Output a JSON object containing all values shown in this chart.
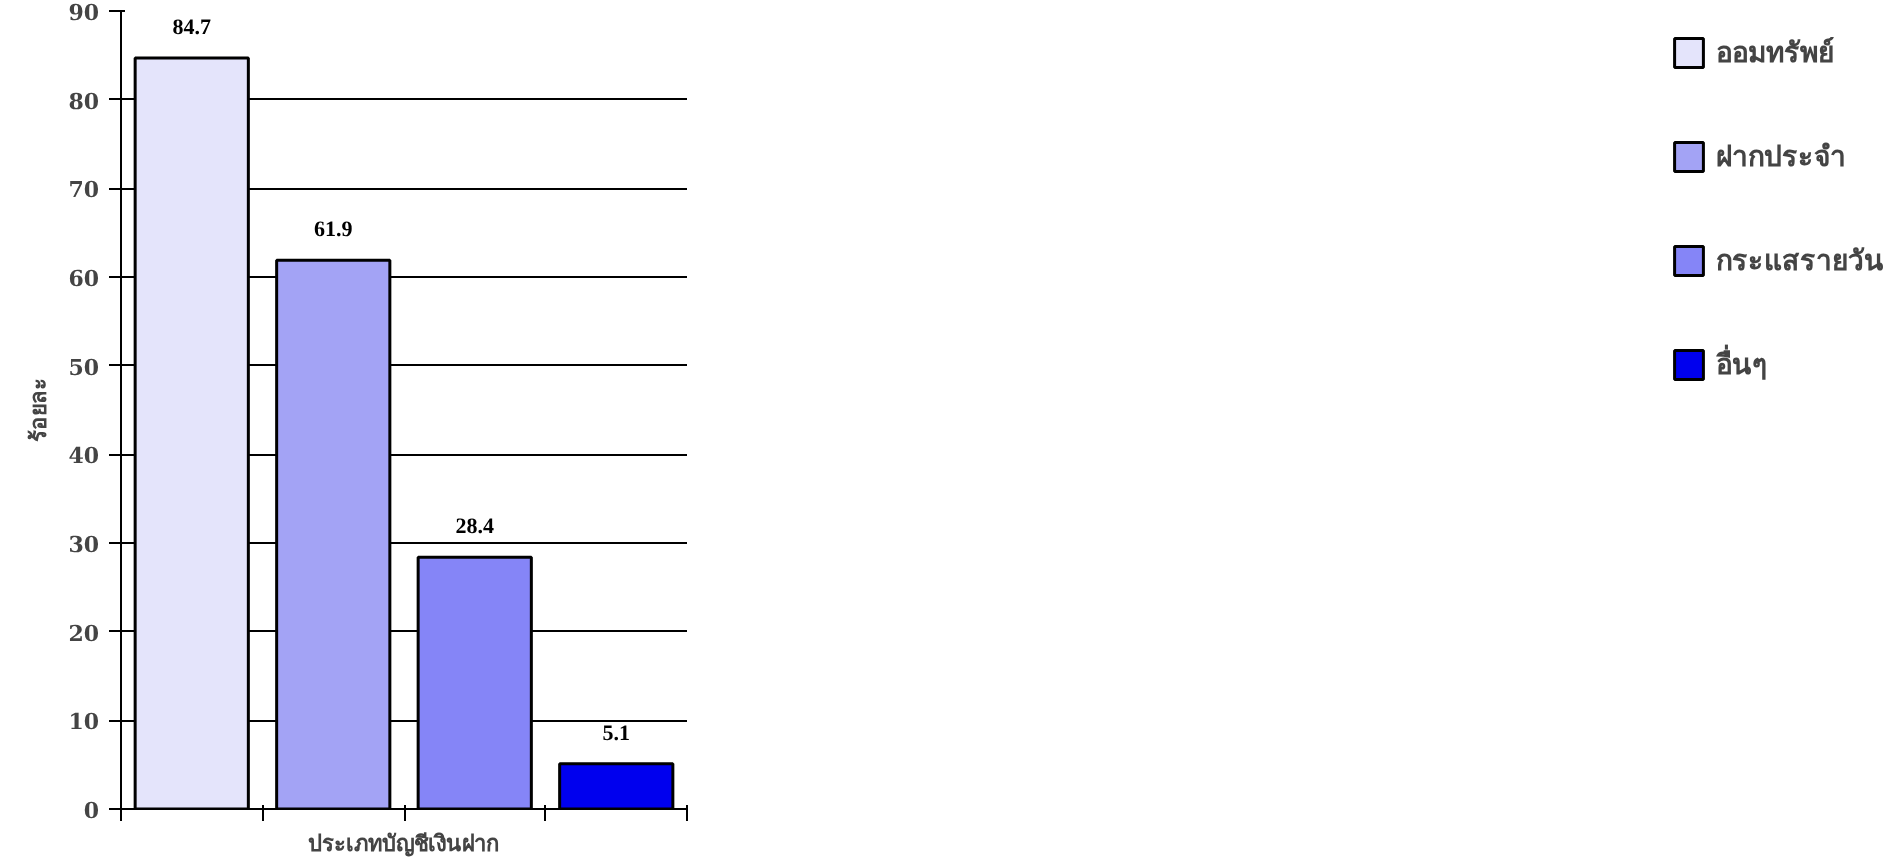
{
  "chart_data": {
    "type": "bar",
    "xlabel": "ประเภทบัญชีเงินฝาก",
    "ylabel": "ร้อยละ",
    "categories": [
      null,
      null,
      null,
      null
    ],
    "series": [
      {
        "name": "ออมทรัพย์",
        "color": "#e4e4fb",
        "values": [
          84.7,
          null,
          null,
          null
        ]
      },
      {
        "name": "ฝากประจำ",
        "color": "#a3a3f5",
        "values": [
          null,
          61.9,
          null,
          null
        ]
      },
      {
        "name": "กระแสรายวัน",
        "color": "#8585f7",
        "values": [
          null,
          null,
          28.4,
          null
        ]
      },
      {
        "name": "อื่นๆ",
        "color": "#0000ee",
        "values": [
          null,
          null,
          null,
          5.1
        ]
      }
    ],
    "ylim": [
      0,
      90
    ],
    "yticks": [
      0,
      10,
      20,
      30,
      40,
      50,
      60,
      70,
      80,
      90
    ],
    "grid": "y",
    "legend": "right",
    "data_labels": true
  }
}
